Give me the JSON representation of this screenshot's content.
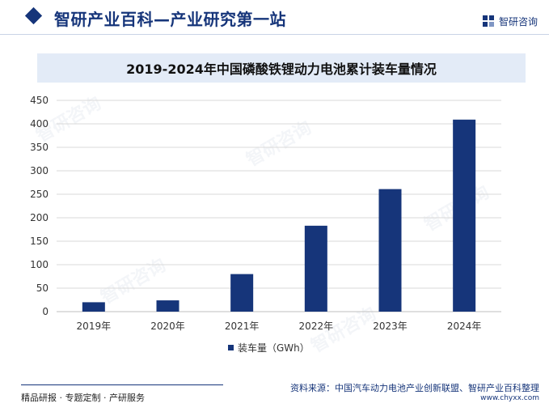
{
  "header": {
    "site_title": "智研产业百科—产业研究第一站",
    "brand_name": "智研咨询",
    "logo_icon": "zhiyan-logo-icon"
  },
  "watermark_text": "智研咨询",
  "chart_data": {
    "type": "bar",
    "title": "2019-2024年中国磷酸铁锂动力电池累计装车量情况",
    "categories": [
      "2019年",
      "2020年",
      "2021年",
      "2022年",
      "2023年",
      "2024年"
    ],
    "series": [
      {
        "name": "装车量（GWh）",
        "values": [
          20,
          24,
          80,
          183,
          261,
          409
        ]
      }
    ],
    "y_ticks": [
      0,
      50,
      100,
      150,
      200,
      250,
      300,
      350,
      400,
      450
    ],
    "ylim": [
      0,
      450
    ],
    "xlabel": "",
    "ylabel": "",
    "grid": true,
    "legend_position": "bottom",
    "bar_color": "#16357a"
  },
  "footer": {
    "left": "精品研报 · 专题定制 · 产研服务",
    "source": "资料来源：中国汽车动力电池产业创新联盟、智研产业百科整理",
    "url": "www.chyxx.com"
  }
}
